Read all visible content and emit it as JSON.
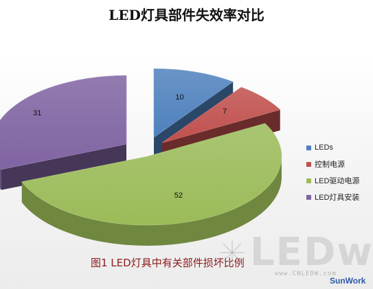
{
  "header": {
    "title": "LED灯具部件失效率对比"
  },
  "chart_data": {
    "type": "pie",
    "style": "3d-exploded",
    "title": "LED灯具部件失效率对比",
    "slices": [
      {
        "label": "LEDs",
        "value": 10,
        "color": "#4f81bd"
      },
      {
        "label": "控制电源",
        "value": 7,
        "color": "#c0504d"
      },
      {
        "label": "LED驱动电源",
        "value": 52,
        "color": "#9bbb59"
      },
      {
        "label": "LED灯具安装",
        "value": 31,
        "color": "#8064a2"
      }
    ],
    "legend_position": "right",
    "data_labels": true
  },
  "caption": "图1  LED灯具中有关部件损坏比例",
  "watermark": {
    "text": "LEDw",
    "url": "www.CNLEDW.com",
    "brand": "SunWork"
  }
}
